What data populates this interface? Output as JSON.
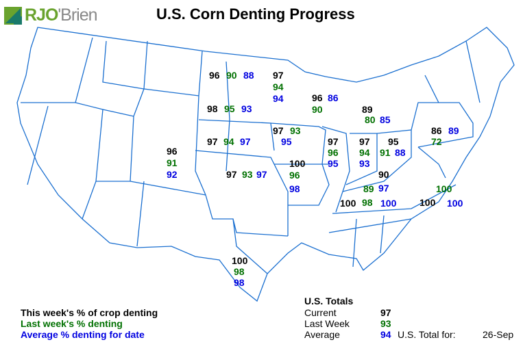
{
  "title": "U.S. Corn Denting Progress",
  "logo": {
    "text_main": "RJO",
    "text_rest": "'Brien"
  },
  "colors": {
    "current": "#000000",
    "last_week": "#007000",
    "average": "#0000e0",
    "state_border": "#1a6fd0"
  },
  "states": [
    {
      "state": "ND",
      "current": "96",
      "last_week": "90",
      "average": "88"
    },
    {
      "state": "MN",
      "current": "97",
      "last_week": "94",
      "average": "94"
    },
    {
      "state": "SD",
      "current": "98",
      "last_week": "95",
      "average": "93"
    },
    {
      "state": "WI",
      "current": "96",
      "last_week": "90",
      "average": "86"
    },
    {
      "state": "NE",
      "current": "97",
      "last_week": "94",
      "average": "97"
    },
    {
      "state": "IA",
      "current": "97",
      "last_week": "93",
      "average": "95"
    },
    {
      "state": "CO",
      "current": "96",
      "last_week": "91",
      "average": "92"
    },
    {
      "state": "KS",
      "current": "97",
      "last_week": "93",
      "average": "97"
    },
    {
      "state": "MO",
      "current": "100",
      "last_week": "96",
      "average": "98"
    },
    {
      "state": "IL",
      "current": "97",
      "last_week": "96",
      "average": "95"
    },
    {
      "state": "IN",
      "current": "97",
      "last_week": "94",
      "average": "93"
    },
    {
      "state": "MI",
      "current": "89",
      "last_week": "80",
      "average": "85"
    },
    {
      "state": "OH",
      "current": "95",
      "last_week": "91",
      "average": "88"
    },
    {
      "state": "PA",
      "current": "86",
      "last_week": "72",
      "average": "89"
    },
    {
      "state": "KY",
      "current": "90",
      "last_week": "89",
      "average": "97"
    },
    {
      "state": "TN",
      "current": "100",
      "last_week": "98",
      "average": "100"
    },
    {
      "state": "NC",
      "current": "100",
      "last_week": "100",
      "average": "100"
    },
    {
      "state": "TX",
      "current": "100",
      "last_week": "98",
      "average": "98"
    }
  ],
  "legend": {
    "current": "This week's % of crop denting",
    "last_week": "Last week's % denting",
    "average": "Average % denting for date"
  },
  "totals": {
    "heading": "U.S. Totals",
    "current_label": "Current",
    "current": "97",
    "last_week_label": "Last Week",
    "last_week": "93",
    "average_label": "Average",
    "average": "94",
    "date_label": "U.S. Total for:",
    "date": "26-Sep"
  }
}
